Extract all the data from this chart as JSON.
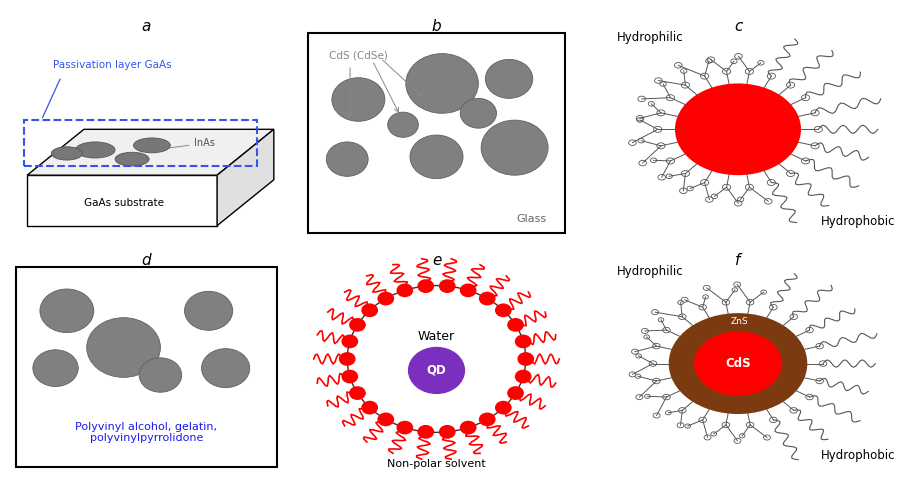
{
  "title_a": "a",
  "title_b": "b",
  "title_c": "c",
  "title_d": "d",
  "title_e": "e",
  "title_f": "f",
  "label_passivation": "Passivation layer GaAs",
  "label_inas": "InAs",
  "label_gaas": "GaAs substrate",
  "label_cds": "CdS (CdSe)",
  "label_glass": "Glass",
  "label_hydrophilic_c": "Hydrophilic",
  "label_hydrophobic_c": "Hydrophobic",
  "label_polymer": "Polyvinyl alcohol, gelatin,\npolyvinylpyrrolidone",
  "label_water": "Water",
  "label_qd": "QD",
  "label_nonpolar": "Non-polar solvent",
  "label_hydrophilic_f": "Hydrophilic",
  "label_hydrophobic_f": "Hydrophobic",
  "label_zns": "ZnS",
  "label_cds_f": "CdS",
  "color_red": "#ff0000",
  "color_gray": "#808080",
  "color_dark_red": "#cc0000",
  "color_blue_dashed": "#3355ee",
  "color_brown": "#7B3A10",
  "color_purple": "#7B2FBE",
  "color_white": "#ffffff",
  "color_black": "#000000",
  "color_polymer_text": "#1a1aee",
  "bg_color": "#ffffff"
}
